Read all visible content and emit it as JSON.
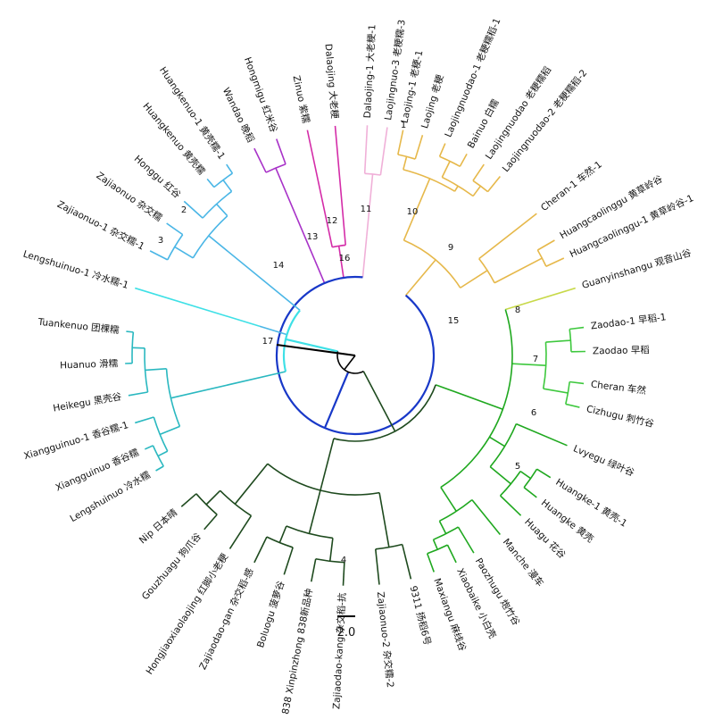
{
  "leaves": [
    {
      "id": "L1",
      "label": "Laojing-1 老粳-1",
      "color": "#e6b84a"
    },
    {
      "id": "L2",
      "label": "Laojing 老粳",
      "color": "#e6b84a"
    },
    {
      "id": "L3",
      "label": "Laojingnuodao-1 老粳糯稻-1",
      "color": "#e6b84a"
    },
    {
      "id": "L4",
      "label": "Bainuo 白糯",
      "color": "#e6b84a"
    },
    {
      "id": "L5",
      "label": "Laojingnuodao 老粳糯稻",
      "color": "#e6b84a"
    },
    {
      "id": "L6",
      "label": "Laojingnuodao-2 老粳糯稻-2",
      "color": "#e6b84a"
    },
    {
      "id": "L7",
      "label": "Cheran-1 车然-1",
      "color": "#e6b84a"
    },
    {
      "id": "L8",
      "label": "Huangcaolinggu 黄草岭谷",
      "color": "#e6b84a"
    },
    {
      "id": "L9",
      "label": "Huangcaolinggu-1 黄草岭谷-1",
      "color": "#e6b84a"
    },
    {
      "id": "L10",
      "label": "Guanyinshangu 观音山谷",
      "color": "#c8d94a"
    },
    {
      "id": "L11",
      "label": "Zaodao-1 早稻-1",
      "color": "#3ec83e"
    },
    {
      "id": "L12",
      "label": "Zaodao 早稻",
      "color": "#3ec83e"
    },
    {
      "id": "L13",
      "label": "Cheran 车然",
      "color": "#3ec83e"
    },
    {
      "id": "L14",
      "label": "Cizhugu 刺竹谷",
      "color": "#3ec83e"
    },
    {
      "id": "L15",
      "label": "Lvyegu 绿叶谷",
      "color": "#1fa81f"
    },
    {
      "id": "L16",
      "label": "Huangke-1 黄壳-1",
      "color": "#1fa81f"
    },
    {
      "id": "L17",
      "label": "Huangke 黄壳",
      "color": "#1fa81f"
    },
    {
      "id": "L18",
      "label": "Huagu 花谷",
      "color": "#1fa81f"
    },
    {
      "id": "L19",
      "label": "Manche 漫车",
      "color": "#1fa81f"
    },
    {
      "id": "L20",
      "label": "Paozhugu 炮竹谷",
      "color": "#1fa81f"
    },
    {
      "id": "L21",
      "label": "Xiaobaike 小白壳",
      "color": "#1fa81f"
    },
    {
      "id": "L22",
      "label": "Maxiangu 麻线谷",
      "color": "#1fa81f"
    },
    {
      "id": "L23",
      "label": "9311 扬稻6号",
      "color": "#1e4a1e"
    },
    {
      "id": "L24",
      "label": "Zajiaonuo-2 杂交糯-2",
      "color": "#1e4a1e"
    },
    {
      "id": "L25",
      "label": "Zajiaodao-kang 杂交稻-抗",
      "color": "#1e4a1e"
    },
    {
      "id": "L26",
      "label": "838 Xinpinzhong 838新品种",
      "color": "#1e4a1e"
    },
    {
      "id": "L27",
      "label": "Boluogu 菠萝谷",
      "color": "#1e4a1e"
    },
    {
      "id": "L28",
      "label": "Zajiaodao-gan 杂交稻-感",
      "color": "#1e4a1e"
    },
    {
      "id": "L29",
      "label": "Hongjiaoxiaolaojing 红脚小老粳",
      "color": "#1e4a1e"
    },
    {
      "id": "L30",
      "label": "Gouzhuagu 狗爪谷",
      "color": "#1e4a1e"
    },
    {
      "id": "L31",
      "label": "Nip 日本晴",
      "color": "#1e4a1e"
    },
    {
      "id": "L32",
      "label": "Lengshuinuo 冷水糯",
      "color": "#2ab8c0"
    },
    {
      "id": "L33",
      "label": "Xiangguinuo 香谷糯",
      "color": "#2ab8c0"
    },
    {
      "id": "L34",
      "label": "Xiangguinuo-1 香谷糯-1",
      "color": "#2ab8c0"
    },
    {
      "id": "L35",
      "label": "Heikegu 黑壳谷",
      "color": "#2ab8c0"
    },
    {
      "id": "L36",
      "label": "Huanuo 滑糯",
      "color": "#2ab8c0"
    },
    {
      "id": "L37",
      "label": "Tuankenuo 团棵糯",
      "color": "#2ab8c0"
    },
    {
      "id": "L38",
      "label": "Lengshuinuo-1 冷水糯-1",
      "color": "#3ee0e6"
    },
    {
      "id": "L39",
      "label": "Zajiaonuo-1 杂交糯-1",
      "color": "#4ab6e6"
    },
    {
      "id": "L40",
      "label": "Zajiaonuo 杂交糯",
      "color": "#4ab6e6"
    },
    {
      "id": "L41",
      "label": "Honggu 红谷",
      "color": "#4ab6e6"
    },
    {
      "id": "L42",
      "label": "Huangkenuo 黄壳糯",
      "color": "#4ab6e6"
    },
    {
      "id": "L43",
      "label": "Huangkenuo-1 黄壳糯-1",
      "color": "#4ab6e6"
    },
    {
      "id": "L44",
      "label": "Wandao 晚稻",
      "color": "#a832c8"
    },
    {
      "id": "L45",
      "label": "Hongmigu 红米谷",
      "color": "#a832c8"
    },
    {
      "id": "L46",
      "label": "Zinuo 紫糯",
      "color": "#d42ca8"
    },
    {
      "id": "L47",
      "label": "Dalaojing 大老粳",
      "color": "#d42ca8"
    },
    {
      "id": "L48",
      "label": "Dalaojing-1 大老粳-1",
      "color": "#f0b0d8"
    },
    {
      "id": "L49",
      "label": "Laojingnuo-3 老粳糯-3",
      "color": "#f0b0d8"
    }
  ],
  "node_numbers": [
    "1",
    "2",
    "3",
    "4",
    "5",
    "6",
    "7",
    "8",
    "9",
    "10",
    "11",
    "12",
    "13",
    "14",
    "15",
    "16",
    "17"
  ],
  "scale_bar": {
    "label": "2.0"
  },
  "colors": {
    "root": "#000000",
    "c15": "#1838c8",
    "c16": "#3ee0e6",
    "c17_green_dark": "#1e4a1e"
  }
}
